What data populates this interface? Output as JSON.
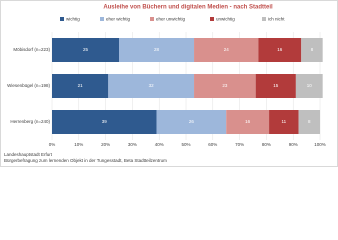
{
  "chart_data": {
    "type": "stacked-bar-horizontal",
    "title": "Ausleihe von Büchern und digitalen Medien - nach Stadtteil",
    "categories": [
      "Möbisdorf (n=223)",
      "Wiesenbügel (n=198)",
      "Herrenberg (n=240)"
    ],
    "series": [
      {
        "name": "wichtig",
        "color": "#2f5a8f",
        "values": [
          25,
          21,
          39
        ]
      },
      {
        "name": "eher wichtig",
        "color": "#9db7db",
        "values": [
          28,
          32,
          26
        ]
      },
      {
        "name": "eher unwichtig",
        "color": "#d9908d",
        "values": [
          24,
          23,
          16
        ]
      },
      {
        "name": "unwichtig",
        "color": "#b23b3b",
        "values": [
          16,
          15,
          11
        ]
      },
      {
        "name": "ich nicht",
        "color": "#bfbfbf",
        "values": [
          8,
          10,
          8
        ]
      }
    ],
    "xlim": [
      0,
      100
    ],
    "xticks": [
      {
        "value": 0,
        "label": "0%"
      },
      {
        "value": 10,
        "label": "10%"
      },
      {
        "value": 20,
        "label": "20%"
      },
      {
        "value": 30,
        "label": "30%"
      },
      {
        "value": 40,
        "label": "40%"
      },
      {
        "value": 50,
        "label": "50%"
      },
      {
        "value": 60,
        "label": "60%"
      },
      {
        "value": 70,
        "label": "70%"
      },
      {
        "value": 80,
        "label": "80%"
      },
      {
        "value": 90,
        "label": "90%"
      },
      {
        "value": 100,
        "label": "100%"
      }
    ],
    "grid": true,
    "footer": [
      "Landeshauptstadt Erfurt",
      "Bürgerbefragung zum lernenden Objekt in der Tungesstadt, Beta Stadtteilzentrum"
    ]
  }
}
